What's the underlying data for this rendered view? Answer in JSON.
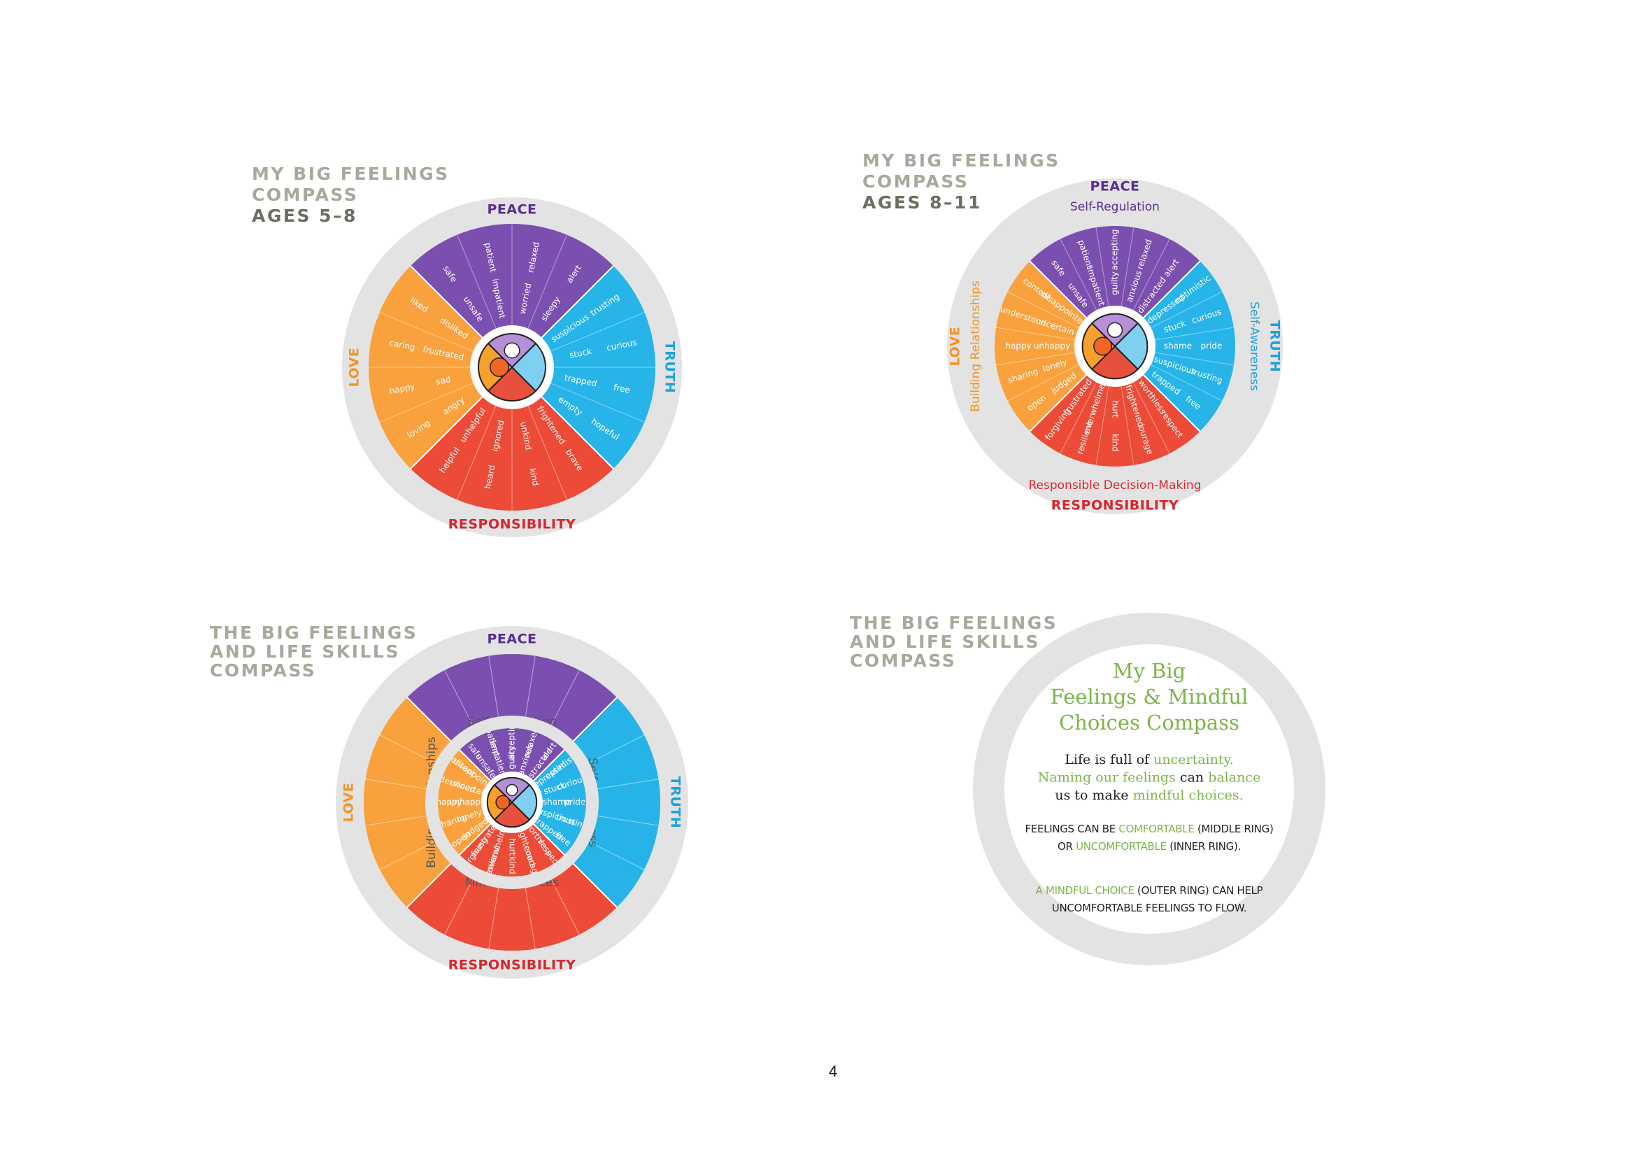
{
  "wheels": [
    {
      "title": [
        "MY BIG FEELINGS",
        "COMPASS"
      ],
      "subtitle": "AGES 5–8",
      "quadrants": [
        {
          "label": "PEACE",
          "color": "#7a4fb0",
          "label_color": "#5a2d91",
          "outer_words": [
            "safe",
            "patient",
            "relaxed",
            "alert"
          ],
          "inner_words": [
            "unsafe",
            "impatient",
            "worried",
            "sleepy"
          ]
        },
        {
          "label": "TRUTH",
          "color": "#27b4e8",
          "label_color": "#1ba1dc",
          "outer_words": [
            "trusting",
            "curious",
            "free",
            "hopeful"
          ],
          "inner_words": [
            "suspicious",
            "stuck",
            "trapped",
            "empty"
          ]
        },
        {
          "label": "RESPONSIBILITY",
          "color": "#ec4b38",
          "label_color": "#d7262e",
          "outer_words": [
            "brave",
            "kind",
            "heard",
            "helpful"
          ],
          "inner_words": [
            "frightened",
            "unkind",
            "ignored",
            "unhelpful"
          ]
        },
        {
          "label": "LOVE",
          "color": "#f9a13c",
          "label_color": "#f39325",
          "outer_words": [
            "loving",
            "happy",
            "caring",
            "liked"
          ],
          "inner_words": [
            "angry",
            "sad",
            "frustrated",
            "disliked"
          ]
        }
      ]
    },
    {
      "title": [
        "MY BIG FEELINGS",
        "COMPASS"
      ],
      "subtitle": "AGES 8–11",
      "quadrants": [
        {
          "label": "PEACE",
          "skill": "Self-Regulation",
          "color": "#7a4fb0",
          "label_color": "#5a2d91",
          "outer_words": [
            "safe",
            "patient",
            "accepting",
            "relaxed",
            "alert"
          ],
          "inner_words": [
            "unsafe",
            "impatient",
            "guilty",
            "anxious",
            "distracted"
          ]
        },
        {
          "label": "TRUTH",
          "skill": "Self-Awareness",
          "color": "#27b4e8",
          "label_color": "#1ba1dc",
          "outer_words": [
            "optimistic",
            "curious",
            "pride",
            "trusting",
            "free"
          ],
          "inner_words": [
            "depressed",
            "stuck",
            "shame",
            "suspicious",
            "trapped"
          ]
        },
        {
          "label": "RESPONSIBILITY",
          "skill": "Responsible Decision-Making",
          "color": "#ec4b38",
          "label_color": "#d7262e",
          "outer_words": [
            "respect",
            "courage",
            "kind",
            "resilient",
            "forgiving"
          ],
          "inner_words": [
            "worthless",
            "frightened",
            "hurt",
            "overwhelmed",
            "frustrated"
          ]
        },
        {
          "label": "LOVE",
          "skill": "Building Relationships",
          "color": "#f9a13c",
          "label_color": "#f39325",
          "outer_words": [
            "open",
            "sharing",
            "happy",
            "understood",
            "content"
          ],
          "inner_words": [
            "judged",
            "lonely",
            "unhappy",
            "uncertain",
            "disappointed"
          ]
        }
      ]
    },
    {
      "title": [
        "THE BIG FEELINGS",
        "AND LIFE SKILLS",
        "COMPASS"
      ],
      "quadrants": [
        {
          "label": "PEACE",
          "skill": "Self-Regulation",
          "color": "#7a4fb0",
          "label_color": "#5a2d91",
          "outer_words": [
            "safe",
            "patient",
            "accepting",
            "relaxed",
            "alert"
          ],
          "inner_words": [
            "unsafe",
            "impatient",
            "guilty",
            "anxious",
            "distracted"
          ]
        },
        {
          "label": "TRUTH",
          "skill": "Self-Awareness",
          "color": "#27b4e8",
          "label_color": "#1ba1dc",
          "outer_words": [
            "optimistic",
            "curious",
            "pride",
            "trusting",
            "free"
          ],
          "inner_words": [
            "depressed",
            "stuck",
            "shame",
            "suspicious",
            "trapped"
          ]
        },
        {
          "label": "RESPONSIBILITY",
          "skill": "Mindful Choices",
          "color": "#ec4b38",
          "label_color": "#d7262e",
          "outer_words": [
            "respect",
            "courage",
            "kind",
            "resilient",
            "forgiving"
          ],
          "inner_words": [
            "worthless",
            "frightened",
            "hurt",
            "overwhelmed",
            "frustrated"
          ]
        },
        {
          "label": "LOVE",
          "skill": "Building Relationships",
          "color": "#f9a13c",
          "label_color": "#f39325",
          "outer_words": [
            "open",
            "sharing",
            "happy",
            "understood",
            "content"
          ],
          "inner_words": [
            "judged",
            "lonely",
            "unhappy",
            "uncertain",
            "disappointed"
          ]
        }
      ]
    }
  ],
  "info_card": {
    "title": [
      "THE BIG FEELINGS",
      "AND LIFE SKILLS",
      "COMPASS"
    ],
    "heading": [
      "My Big",
      "Feelings & Mindful",
      "Choices Compass"
    ],
    "paragraph": [
      [
        {
          "text": "Life is full of ",
          "accent": false
        },
        {
          "text": "uncertainty.",
          "accent": true
        }
      ],
      [
        {
          "text": "Naming our feelings",
          "accent": true
        },
        {
          "text": " can ",
          "accent": false
        },
        {
          "text": "balance",
          "accent": true
        }
      ],
      [
        {
          "text": "us to make ",
          "accent": false
        },
        {
          "text": "mindful choices.",
          "accent": true
        }
      ]
    ],
    "notes": [
      [
        {
          "text": "FEELINGS CAN BE ",
          "accent": false
        },
        {
          "text": "COMFORTABLE",
          "accent": true
        },
        {
          "text": " (MIDDLE RING)",
          "accent": false
        }
      ],
      [
        {
          "text": "OR ",
          "accent": false
        },
        {
          "text": "UNCOMFORTABLE",
          "accent": true
        },
        {
          "text": " (INNER RING).",
          "accent": false
        }
      ],
      [
        {
          "text": "A MINDFUL CHOICE",
          "accent": true
        },
        {
          "text": " (OUTER RING) CAN HELP",
          "accent": false
        }
      ],
      [
        {
          "text": "UNCOMFORTABLE FEELINGS TO FLOW.",
          "accent": false
        }
      ]
    ]
  },
  "page_number": "4"
}
